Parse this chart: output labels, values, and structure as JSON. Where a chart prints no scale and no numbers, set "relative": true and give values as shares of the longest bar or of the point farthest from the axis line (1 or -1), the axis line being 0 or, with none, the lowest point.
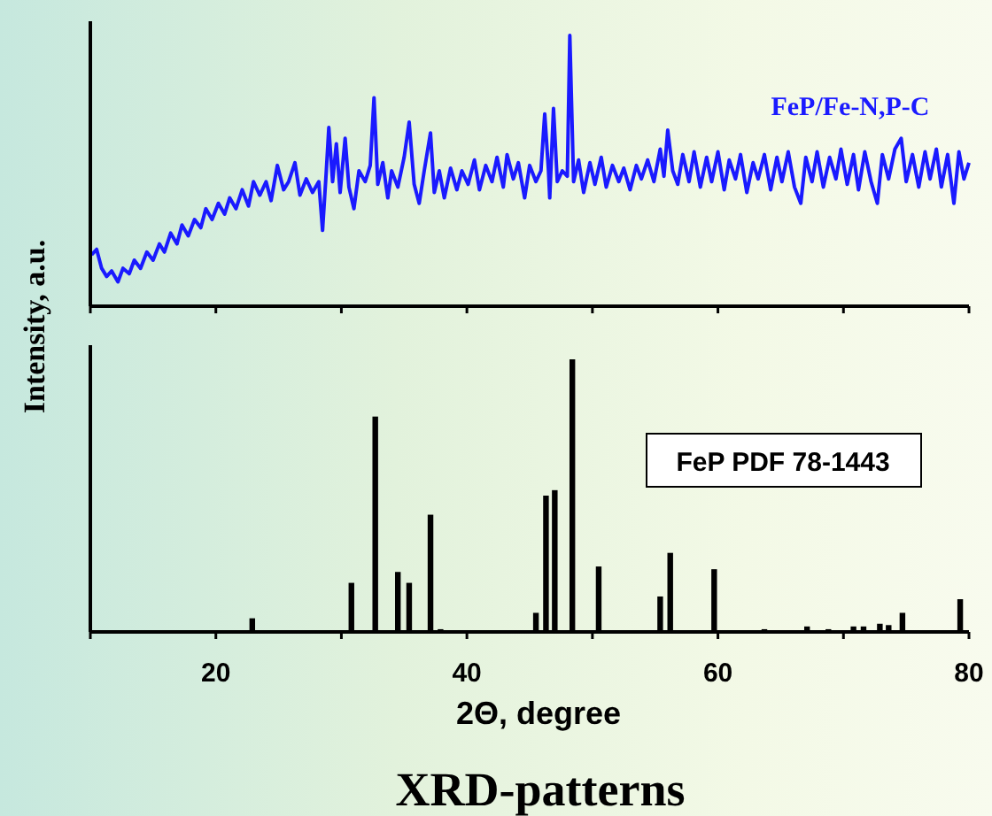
{
  "chart_data": [
    {
      "type": "line",
      "relative": true,
      "ylabel": "Intensity, a.u.",
      "xlim": [
        10,
        80
      ],
      "xticks": [
        {
          "value": 10,
          "label": null
        },
        {
          "value": 20,
          "label": null
        },
        {
          "value": 30,
          "label": null
        },
        {
          "value": 40,
          "label": null
        },
        {
          "value": 50,
          "label": null
        },
        {
          "value": 60,
          "label": null
        },
        {
          "value": 70,
          "label": null
        },
        {
          "value": 80,
          "label": null
        }
      ],
      "tick_labels": false,
      "legend": false,
      "series": [
        {
          "name": "FeP/Fe-N,P-C",
          "color": "#1a1aff",
          "x": [
            10.1,
            10.5,
            10.9,
            11.3,
            11.7,
            12.2,
            12.6,
            13.1,
            13.5,
            14.0,
            14.5,
            15.0,
            15.5,
            15.9,
            16.4,
            16.9,
            17.3,
            17.8,
            18.3,
            18.8,
            19.2,
            19.7,
            20.2,
            20.7,
            21.1,
            21.6,
            22.1,
            22.6,
            23.0,
            23.5,
            24.0,
            24.4,
            24.9,
            25.4,
            25.8,
            26.3,
            26.7,
            27.2,
            27.7,
            28.2,
            28.5,
            28.8,
            29.0,
            29.3,
            29.6,
            29.9,
            30.3,
            30.6,
            31.0,
            31.4,
            31.9,
            32.3,
            32.6,
            32.9,
            33.3,
            33.7,
            34.0,
            34.5,
            35.0,
            35.4,
            35.8,
            36.2,
            36.6,
            37.1,
            37.4,
            37.8,
            38.2,
            38.7,
            39.2,
            39.6,
            40.1,
            40.6,
            41.0,
            41.5,
            42.0,
            42.4,
            42.9,
            43.2,
            43.7,
            44.1,
            44.6,
            45.0,
            45.5,
            45.9,
            46.2,
            46.5,
            46.6,
            46.9,
            47.2,
            47.6,
            48.0,
            48.2,
            48.5,
            48.9,
            49.3,
            49.8,
            50.2,
            50.7,
            51.1,
            51.6,
            52.1,
            52.5,
            53.0,
            53.5,
            53.9,
            54.4,
            54.9,
            55.4,
            55.7,
            56.0,
            56.4,
            56.8,
            57.2,
            57.7,
            58.1,
            58.6,
            59.1,
            59.5,
            60.0,
            60.5,
            60.9,
            61.4,
            61.8,
            62.3,
            62.8,
            63.2,
            63.7,
            64.2,
            64.7,
            65.1,
            65.6,
            66.1,
            66.6,
            67.0,
            67.5,
            67.9,
            68.4,
            68.9,
            69.4,
            69.8,
            70.3,
            70.8,
            71.2,
            71.7,
            72.2,
            72.7,
            73.1,
            73.6,
            74.1,
            74.6,
            75.0,
            75.5,
            76.0,
            76.5,
            76.9,
            77.4,
            77.8,
            78.3,
            78.8,
            79.2,
            79.6,
            80.0
          ],
          "values": [
            0.19,
            0.21,
            0.14,
            0.11,
            0.13,
            0.09,
            0.14,
            0.12,
            0.17,
            0.14,
            0.2,
            0.17,
            0.23,
            0.2,
            0.27,
            0.23,
            0.3,
            0.26,
            0.32,
            0.29,
            0.36,
            0.32,
            0.38,
            0.34,
            0.4,
            0.36,
            0.43,
            0.37,
            0.46,
            0.41,
            0.46,
            0.39,
            0.52,
            0.43,
            0.46,
            0.53,
            0.41,
            0.47,
            0.42,
            0.46,
            0.28,
            0.5,
            0.66,
            0.46,
            0.6,
            0.42,
            0.62,
            0.44,
            0.36,
            0.5,
            0.46,
            0.52,
            0.77,
            0.45,
            0.53,
            0.4,
            0.5,
            0.44,
            0.55,
            0.68,
            0.45,
            0.38,
            0.5,
            0.64,
            0.42,
            0.5,
            0.4,
            0.51,
            0.43,
            0.5,
            0.45,
            0.54,
            0.43,
            0.52,
            0.46,
            0.55,
            0.44,
            0.56,
            0.47,
            0.53,
            0.4,
            0.52,
            0.46,
            0.5,
            0.71,
            0.5,
            0.4,
            0.73,
            0.46,
            0.5,
            0.48,
            1.0,
            0.46,
            0.54,
            0.42,
            0.53,
            0.45,
            0.55,
            0.44,
            0.52,
            0.46,
            0.51,
            0.43,
            0.52,
            0.47,
            0.54,
            0.46,
            0.58,
            0.48,
            0.65,
            0.5,
            0.45,
            0.56,
            0.46,
            0.57,
            0.44,
            0.55,
            0.46,
            0.57,
            0.43,
            0.54,
            0.47,
            0.56,
            0.42,
            0.53,
            0.47,
            0.56,
            0.43,
            0.55,
            0.46,
            0.57,
            0.44,
            0.38,
            0.55,
            0.46,
            0.57,
            0.44,
            0.55,
            0.47,
            0.58,
            0.45,
            0.56,
            0.43,
            0.57,
            0.46,
            0.38,
            0.56,
            0.47,
            0.58,
            0.62,
            0.46,
            0.56,
            0.44,
            0.57,
            0.47,
            0.58,
            0.44,
            0.56,
            0.38,
            0.57,
            0.47,
            0.53
          ]
        }
      ]
    },
    {
      "type": "bar",
      "relative": true,
      "title": "XRD-patterns",
      "xlabel": "2Θ, degree",
      "xlim": [
        10,
        80
      ],
      "xticks": [
        {
          "value": 10,
          "label": null
        },
        20,
        {
          "value": 30,
          "label": null
        },
        40,
        {
          "value": 50,
          "label": null
        },
        60,
        {
          "value": 70,
          "label": null
        },
        80
      ],
      "tick_labels": "x",
      "legend": "right",
      "series": [
        {
          "name": "FeP PDF 78-1443",
          "color": "#000000",
          "x": [
            22.9,
            30.8,
            32.7,
            34.5,
            35.4,
            37.1,
            37.9,
            45.5,
            46.3,
            47.0,
            48.4,
            50.5,
            55.4,
            56.2,
            59.7,
            63.7,
            67.1,
            68.8,
            70.8,
            71.6,
            72.9,
            73.6,
            74.7,
            79.3
          ],
          "values": [
            0.05,
            0.18,
            0.79,
            0.22,
            0.18,
            0.43,
            0.01,
            0.07,
            0.5,
            0.52,
            1.0,
            0.24,
            0.13,
            0.29,
            0.23,
            0.01,
            0.02,
            0.01,
            0.02,
            0.02,
            0.03,
            0.025,
            0.07,
            0.12
          ]
        }
      ]
    }
  ]
}
